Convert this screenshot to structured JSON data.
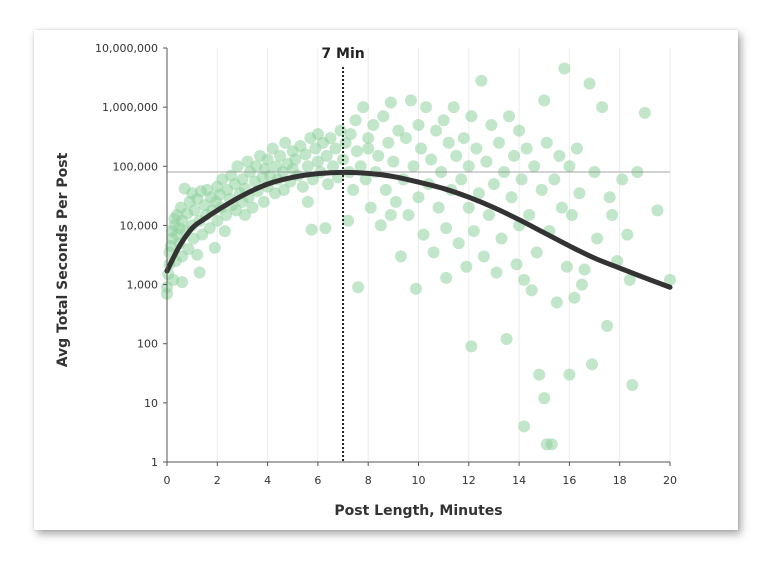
{
  "chart_data": {
    "type": "scatter",
    "title": "",
    "xlabel": "Post Length, Minutes",
    "ylabel": "Avg Total Seconds Per Post",
    "x_ticks": [
      0,
      2,
      4,
      6,
      8,
      10,
      12,
      14,
      16,
      18,
      20
    ],
    "y_ticks": [
      1,
      10,
      100,
      1000,
      10000,
      100000,
      1000000,
      10000000
    ],
    "y_tick_labels": [
      "1",
      "10",
      "100",
      "1,000",
      "10,000",
      "100,000",
      "1,000,000",
      "10,000,000"
    ],
    "xlim": [
      0,
      20
    ],
    "ylim": [
      1,
      10000000
    ],
    "y_scale": "log",
    "grid": "vertical",
    "point_color": "#8fd19e",
    "curve_color": "#333333",
    "annotation": {
      "label": "7 Min",
      "x": 7
    },
    "reference_line_y": 80000,
    "fit_curve": [
      [
        0,
        1700
      ],
      [
        0.5,
        4500
      ],
      [
        1,
        9000
      ],
      [
        1.5,
        13000
      ],
      [
        2,
        18000
      ],
      [
        3,
        32000
      ],
      [
        4,
        50000
      ],
      [
        5,
        65000
      ],
      [
        6,
        75000
      ],
      [
        7,
        79000
      ],
      [
        8,
        76000
      ],
      [
        9,
        67000
      ],
      [
        10,
        54000
      ],
      [
        11,
        42000
      ],
      [
        12,
        30000
      ],
      [
        13,
        20000
      ],
      [
        14,
        12500
      ],
      [
        15,
        7500
      ],
      [
        16,
        4500
      ],
      [
        17,
        2800
      ],
      [
        18,
        1900
      ],
      [
        19,
        1300
      ],
      [
        20,
        900
      ]
    ],
    "series": [
      {
        "points": [
          [
            0,
            700
          ],
          [
            0,
            900
          ],
          [
            0.05,
            1500
          ],
          [
            0.1,
            2200
          ],
          [
            0.1,
            3500
          ],
          [
            0.15,
            4500
          ],
          [
            0.2,
            6000
          ],
          [
            0.2,
            8000
          ],
          [
            0.25,
            1200
          ],
          [
            0.3,
            10000
          ],
          [
            0.3,
            13000
          ],
          [
            0.35,
            2500
          ],
          [
            0.4,
            7000
          ],
          [
            0.4,
            15000
          ],
          [
            0.5,
            5000
          ],
          [
            0.5,
            9000
          ],
          [
            0.55,
            20000
          ],
          [
            0.6,
            3000
          ],
          [
            0.6,
            12000
          ],
          [
            0.7,
            42000
          ],
          [
            0.75,
            8000
          ],
          [
            0.8,
            16000
          ],
          [
            0.85,
            4000
          ],
          [
            0.9,
            25000
          ],
          [
            1,
            10000
          ],
          [
            1,
            35000
          ],
          [
            1.05,
            6000
          ],
          [
            1.1,
            18000
          ],
          [
            1.2,
            3200
          ],
          [
            1.2,
            28000
          ],
          [
            1.3,
            12000
          ],
          [
            1.35,
            38000
          ],
          [
            1.4,
            7000
          ],
          [
            1.5,
            22000
          ],
          [
            1.55,
            15000
          ],
          [
            1.6,
            40000
          ],
          [
            1.7,
            9000
          ],
          [
            1.75,
            30000
          ],
          [
            1.8,
            18000
          ],
          [
            1.9,
            4200
          ],
          [
            1.95,
            25000
          ],
          [
            2,
            12000
          ],
          [
            2,
            45000
          ],
          [
            2.1,
            33000
          ],
          [
            2.15,
            20000
          ],
          [
            2.2,
            60000
          ],
          [
            2.3,
            8000
          ],
          [
            2.35,
            15000
          ],
          [
            2.4,
            40000
          ],
          [
            2.5,
            28000
          ],
          [
            2.55,
            70000
          ],
          [
            2.6,
            22000
          ],
          [
            2.7,
            50000
          ],
          [
            2.75,
            18000
          ],
          [
            2.8,
            100000
          ],
          [
            2.9,
            35000
          ],
          [
            3,
            25000
          ],
          [
            3,
            60000
          ],
          [
            3.1,
            42000
          ],
          [
            3.2,
            120000
          ],
          [
            3.25,
            30000
          ],
          [
            3.3,
            80000
          ],
          [
            3.4,
            20000
          ],
          [
            3.5,
            55000
          ],
          [
            3.55,
            100000
          ],
          [
            3.6,
            38000
          ],
          [
            3.7,
            150000
          ],
          [
            3.8,
            65000
          ],
          [
            3.85,
            25000
          ],
          [
            3.9,
            90000
          ],
          [
            4,
            45000
          ],
          [
            4,
            130000
          ],
          [
            4.1,
            70000
          ],
          [
            4.2,
            200000
          ],
          [
            4.3,
            35000
          ],
          [
            4.35,
            100000
          ],
          [
            4.4,
            60000
          ],
          [
            4.5,
            150000
          ],
          [
            4.6,
            80000
          ],
          [
            4.65,
            40000
          ],
          [
            4.7,
            250000
          ],
          [
            4.8,
            110000
          ],
          [
            4.9,
            55000
          ],
          [
            5,
            180000
          ],
          [
            5,
            90000
          ],
          [
            5.1,
            130000
          ],
          [
            5.2,
            70000
          ],
          [
            5.3,
            220000
          ],
          [
            5.4,
            45000
          ],
          [
            5.5,
            160000
          ],
          [
            5.6,
            100000
          ],
          [
            5.7,
            300000
          ],
          [
            5.75,
            8500
          ],
          [
            5.8,
            60000
          ],
          [
            5.9,
            200000
          ],
          [
            6,
            120000
          ],
          [
            6,
            350000
          ],
          [
            6.1,
            80000
          ],
          [
            6.2,
            250000
          ],
          [
            6.3,
            9000
          ],
          [
            6.35,
            150000
          ],
          [
            6.4,
            50000
          ],
          [
            6.5,
            300000
          ],
          [
            6.6,
            100000
          ],
          [
            6.7,
            200000
          ],
          [
            6.8,
            65000
          ],
          [
            6.9,
            400000
          ],
          [
            7,
            130000
          ],
          [
            7.1,
            250000
          ],
          [
            7.2,
            12000
          ],
          [
            7.25,
            80000
          ],
          [
            7.3,
            350000
          ],
          [
            7.4,
            40000
          ],
          [
            7.5,
            600000
          ],
          [
            7.55,
            180000
          ],
          [
            7.6,
            900
          ],
          [
            7.7,
            100000
          ],
          [
            7.8,
            1000000
          ],
          [
            7.9,
            60000
          ],
          [
            8,
            300000
          ],
          [
            8,
            200000
          ],
          [
            8.1,
            20000
          ],
          [
            8.2,
            500000
          ],
          [
            8.3,
            80000
          ],
          [
            8.4,
            150000
          ],
          [
            8.5,
            10000
          ],
          [
            8.6,
            700000
          ],
          [
            8.7,
            40000
          ],
          [
            8.8,
            250000
          ],
          [
            8.9,
            1200000
          ],
          [
            9,
            120000
          ],
          [
            9.1,
            25000
          ],
          [
            9.2,
            400000
          ],
          [
            9.3,
            3000
          ],
          [
            9.4,
            60000
          ],
          [
            9.5,
            300000
          ],
          [
            9.6,
            15000
          ],
          [
            9.7,
            1300000
          ],
          [
            9.8,
            100000
          ],
          [
            9.9,
            850
          ],
          [
            10,
            30000
          ],
          [
            10,
            500000
          ],
          [
            10.1,
            200000
          ],
          [
            10.2,
            7000
          ],
          [
            10.3,
            1000000
          ],
          [
            10.4,
            50000
          ],
          [
            10.5,
            130000
          ],
          [
            10.6,
            3500
          ],
          [
            10.7,
            400000
          ],
          [
            10.8,
            20000
          ],
          [
            10.9,
            80000
          ],
          [
            11,
            600000
          ],
          [
            11.1,
            9000
          ],
          [
            11.2,
            250000
          ],
          [
            11.3,
            40000
          ],
          [
            11.4,
            1000000
          ],
          [
            11.5,
            150000
          ],
          [
            11.6,
            5000
          ],
          [
            11.7,
            60000
          ],
          [
            11.8,
            300000
          ],
          [
            11.9,
            2000
          ],
          [
            12,
            100000
          ],
          [
            12,
            20000
          ],
          [
            12.1,
            700000
          ],
          [
            12.2,
            8000
          ],
          [
            12.3,
            200000
          ],
          [
            12.4,
            35000
          ],
          [
            12.5,
            2800000
          ],
          [
            12.6,
            3000
          ],
          [
            12.7,
            120000
          ],
          [
            12.8,
            15000
          ],
          [
            12.9,
            500000
          ],
          [
            13,
            50000
          ],
          [
            13.1,
            1600
          ],
          [
            13.2,
            250000
          ],
          [
            13.3,
            6000
          ],
          [
            13.4,
            80000
          ],
          [
            13.5,
            120
          ],
          [
            13.6,
            700000
          ],
          [
            13.7,
            30000
          ],
          [
            13.8,
            150000
          ],
          [
            13.9,
            2200
          ],
          [
            14,
            400000
          ],
          [
            14,
            10000
          ],
          [
            14.1,
            60000
          ],
          [
            14.2,
            1200
          ],
          [
            14.3,
            200000
          ],
          [
            14.4,
            15000
          ],
          [
            14.5,
            800
          ],
          [
            14.6,
            100000
          ],
          [
            14.7,
            3500
          ],
          [
            14.8,
            30
          ],
          [
            14.9,
            40000
          ],
          [
            15,
            1300000
          ],
          [
            15,
            12
          ],
          [
            15.1,
            250000
          ],
          [
            15.2,
            8000
          ],
          [
            15.3,
            2
          ],
          [
            15.4,
            60000
          ],
          [
            15.5,
            500
          ],
          [
            15.6,
            150000
          ],
          [
            15.7,
            20000
          ],
          [
            15.8,
            4500000
          ],
          [
            15.9,
            2000
          ],
          [
            16,
            100000
          ],
          [
            16,
            30
          ],
          [
            16.1,
            15000
          ],
          [
            16.2,
            600
          ],
          [
            16.3,
            200000
          ],
          [
            16.4,
            35000
          ],
          [
            16.6,
            1800
          ],
          [
            16.8,
            2500000
          ],
          [
            16.9,
            45
          ],
          [
            17,
            80000
          ],
          [
            17.1,
            6000
          ],
          [
            17.3,
            1000000
          ],
          [
            17.5,
            200
          ],
          [
            17.7,
            15000
          ],
          [
            17.9,
            2500
          ],
          [
            18.1,
            60000
          ],
          [
            18.3,
            7000
          ],
          [
            18.5,
            20
          ],
          [
            18.7,
            80000
          ],
          [
            19,
            800000
          ],
          [
            19.5,
            18000
          ],
          [
            20,
            1200
          ],
          [
            0.6,
            1100
          ],
          [
            1.3,
            1600
          ],
          [
            3.1,
            15000
          ],
          [
            5.6,
            25000
          ],
          [
            8.9,
            15000
          ],
          [
            11.1,
            1300
          ],
          [
            12.1,
            90
          ],
          [
            14.2,
            4
          ],
          [
            15.1,
            2
          ],
          [
            16.5,
            1000
          ],
          [
            17.6,
            30000
          ],
          [
            18.4,
            1200
          ]
        ]
      }
    ]
  }
}
